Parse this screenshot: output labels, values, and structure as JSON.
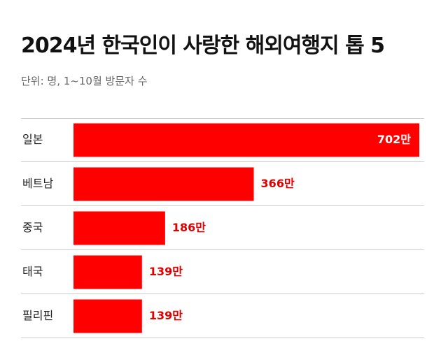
{
  "header": {
    "title": "2024년 한국인이 사랑한 해외여행지 톱 5",
    "subtitle": "단위: 명, 1~10월 방문자 수"
  },
  "colors": {
    "bar": "#ff0000",
    "value_inside": "#ffffff",
    "value_outside": "#e00000"
  },
  "chart_data": {
    "type": "bar",
    "orientation": "horizontal",
    "title": "2024년 한국인이 사랑한 해외여행지 톱 5",
    "subtitle": "단위: 명, 1~10월 방문자 수",
    "categories": [
      "일본",
      "베트남",
      "중국",
      "태국",
      "필리핀"
    ],
    "values": [
      702,
      366,
      186,
      139,
      139
    ],
    "value_labels": [
      "702만",
      "366만",
      "186만",
      "139만",
      "139만"
    ],
    "unit": "만 명",
    "xlim": [
      0,
      702
    ],
    "grid": false,
    "legend": "none"
  }
}
